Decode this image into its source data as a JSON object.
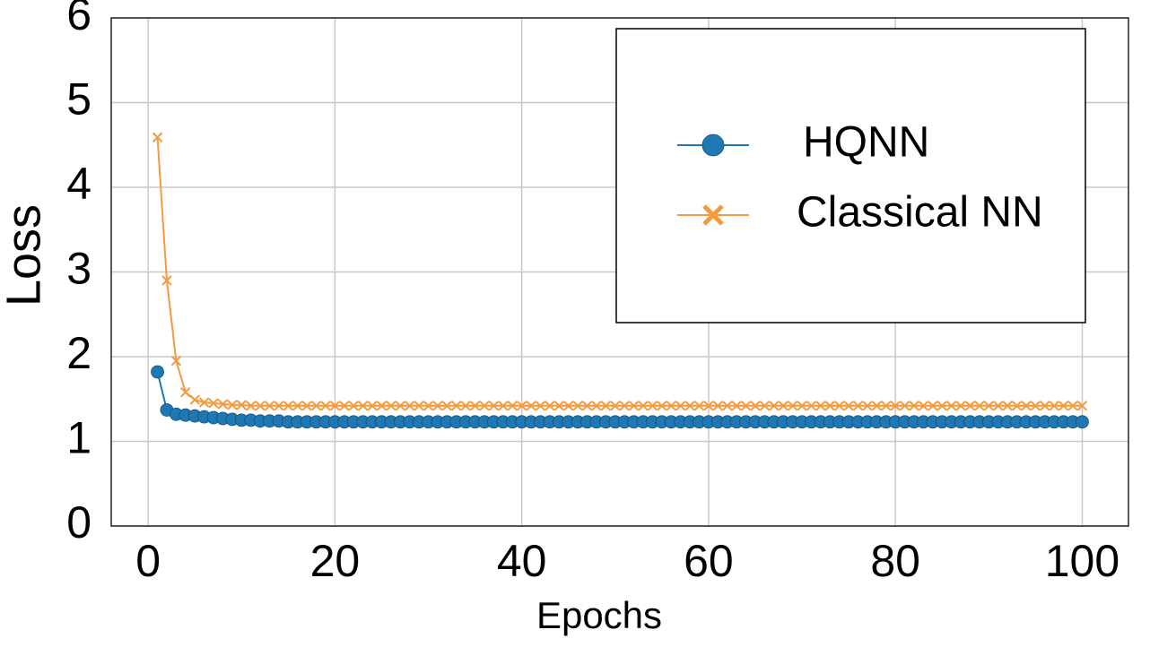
{
  "chart_data": {
    "type": "line",
    "x_label": "Epochs",
    "y_label": "Loss",
    "x": [
      1,
      2,
      3,
      4,
      5,
      6,
      7,
      8,
      9,
      10,
      11,
      12,
      13,
      14,
      15,
      16,
      17,
      18,
      19,
      20,
      21,
      22,
      23,
      24,
      25,
      26,
      27,
      28,
      29,
      30,
      31,
      32,
      33,
      34,
      35,
      36,
      37,
      38,
      39,
      40,
      41,
      42,
      43,
      44,
      45,
      46,
      47,
      48,
      49,
      50,
      51,
      52,
      53,
      54,
      55,
      56,
      57,
      58,
      59,
      60,
      61,
      62,
      63,
      64,
      65,
      66,
      67,
      68,
      69,
      70,
      71,
      72,
      73,
      74,
      75,
      76,
      77,
      78,
      79,
      80,
      81,
      82,
      83,
      84,
      85,
      86,
      87,
      88,
      89,
      90,
      91,
      92,
      93,
      94,
      95,
      96,
      97,
      98,
      99,
      100
    ],
    "series": [
      {
        "name": "HQNN",
        "color": "#1f77b4",
        "marker": "circle",
        "values": [
          1.82,
          1.37,
          1.32,
          1.31,
          1.3,
          1.29,
          1.28,
          1.27,
          1.26,
          1.25,
          1.25,
          1.24,
          1.24,
          1.24,
          1.23,
          1.23,
          1.23,
          1.23,
          1.23,
          1.23,
          1.23,
          1.23,
          1.23,
          1.23,
          1.23,
          1.23,
          1.23,
          1.23,
          1.23,
          1.23,
          1.23,
          1.23,
          1.23,
          1.23,
          1.23,
          1.23,
          1.23,
          1.23,
          1.23,
          1.23,
          1.23,
          1.23,
          1.23,
          1.23,
          1.23,
          1.23,
          1.23,
          1.23,
          1.23,
          1.23,
          1.23,
          1.23,
          1.23,
          1.23,
          1.23,
          1.23,
          1.23,
          1.23,
          1.23,
          1.23,
          1.23,
          1.23,
          1.23,
          1.23,
          1.23,
          1.23,
          1.23,
          1.23,
          1.23,
          1.23,
          1.23,
          1.23,
          1.23,
          1.23,
          1.23,
          1.23,
          1.23,
          1.23,
          1.23,
          1.23,
          1.23,
          1.23,
          1.23,
          1.23,
          1.23,
          1.23,
          1.23,
          1.23,
          1.23,
          1.23,
          1.23,
          1.23,
          1.23,
          1.23,
          1.23,
          1.23,
          1.23,
          1.23,
          1.23,
          1.23
        ]
      },
      {
        "name": "Classical NN",
        "color": "#f39a3e",
        "marker": "x",
        "values": [
          4.59,
          2.9,
          1.95,
          1.58,
          1.49,
          1.46,
          1.45,
          1.44,
          1.43,
          1.43,
          1.42,
          1.42,
          1.42,
          1.42,
          1.42,
          1.42,
          1.42,
          1.42,
          1.42,
          1.42,
          1.42,
          1.42,
          1.42,
          1.42,
          1.42,
          1.42,
          1.42,
          1.42,
          1.42,
          1.42,
          1.42,
          1.42,
          1.42,
          1.42,
          1.42,
          1.42,
          1.42,
          1.42,
          1.42,
          1.42,
          1.42,
          1.42,
          1.42,
          1.42,
          1.42,
          1.42,
          1.42,
          1.42,
          1.42,
          1.42,
          1.42,
          1.42,
          1.42,
          1.42,
          1.42,
          1.42,
          1.42,
          1.42,
          1.42,
          1.42,
          1.42,
          1.42,
          1.42,
          1.42,
          1.42,
          1.42,
          1.42,
          1.42,
          1.42,
          1.42,
          1.42,
          1.42,
          1.42,
          1.42,
          1.42,
          1.42,
          1.42,
          1.42,
          1.42,
          1.42,
          1.42,
          1.42,
          1.42,
          1.42,
          1.42,
          1.42,
          1.42,
          1.42,
          1.42,
          1.42,
          1.42,
          1.42,
          1.42,
          1.42,
          1.42,
          1.42,
          1.42,
          1.42,
          1.42,
          1.42
        ]
      }
    ],
    "xlim": [
      -3.95,
      104.95
    ],
    "ylim": [
      0,
      6
    ],
    "xticks": [
      0,
      20,
      40,
      60,
      80,
      100
    ],
    "yticks": [
      0,
      1,
      2,
      3,
      4,
      5,
      6
    ],
    "grid": true,
    "legend": "upper right"
  }
}
